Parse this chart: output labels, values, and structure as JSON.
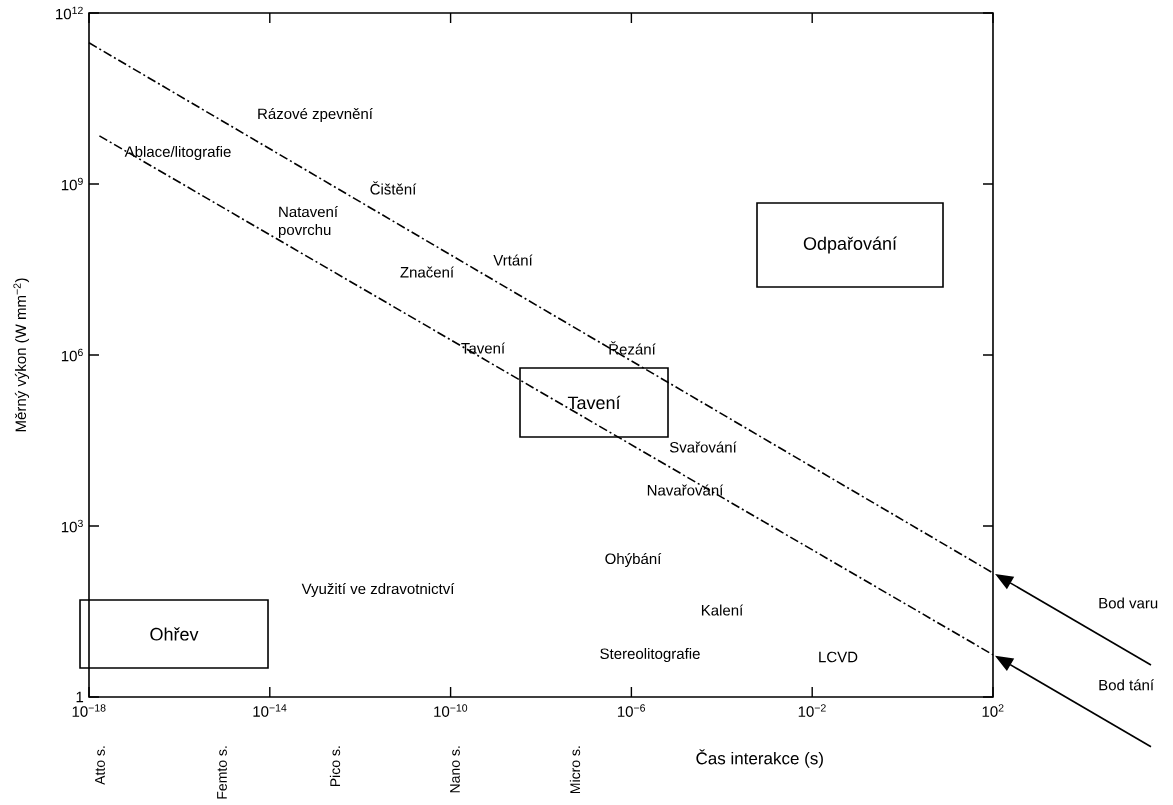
{
  "chart_data": {
    "type": "line",
    "xlabel": "Čas interakce (s)",
    "ylabel": "Měrný výkon (W mm$^{−2}$)",
    "log": "xy",
    "xlim": [
      1e-18,
      100
    ],
    "ylim": [
      1,
      1000000000000.0
    ],
    "xticks": [
      {
        "value": 1e-18,
        "label": "10$^{−18}$"
      },
      {
        "value": 1e-14,
        "label": "10$^{−14}$"
      },
      {
        "value": 1e-10,
        "label": "10$^{−10}$"
      },
      {
        "value": 1e-06,
        "label": "10$^{−6}$"
      },
      {
        "value": 0.01,
        "label": "10$^{−2}$"
      },
      {
        "value": 100,
        "label": "10$^{2}$"
      }
    ],
    "yticks": [
      1,
      {
        "value": 1000,
        "label": "10$^{3}$"
      },
      {
        "value": 1000000.0,
        "label": "10$^{6}$"
      },
      {
        "value": 1000000000.0,
        "label": "10$^{9}$"
      },
      {
        "value": 1000000000000.0,
        "label": "10$^{12}$"
      }
    ],
    "grid": false,
    "legend": false,
    "marker": "none",
    "line_style": "dashdot",
    "series": [
      {
        "name": "Bod varu",
        "color": "#000000",
        "x": [
          1e-18,
          100
        ],
        "values": [
          300000000000.0,
          150
        ]
      },
      {
        "name": "Bod tání",
        "color": "#000000",
        "x": [
          1.7e-18,
          100
        ],
        "values": [
          7000000000.0,
          5.5
        ]
      }
    ],
    "annotations": [
      "Rázové zpevnění",
      "Ablace/litografie",
      "Čištění",
      "Natavení povrchu",
      "Vrtání",
      "Značení",
      "Tavení",
      "Řezání",
      "Svařování",
      "Navařování",
      "Ohýbání",
      "Využití ve zdravotnictví",
      "Kalení",
      "Stereolitografie",
      "LCVD",
      "Odpařování",
      "Tavení",
      "Ohřev",
      "Atto s.",
      "Femto s.",
      "Pico s.",
      "Nano s.",
      "Micro s."
    ]
  }
}
